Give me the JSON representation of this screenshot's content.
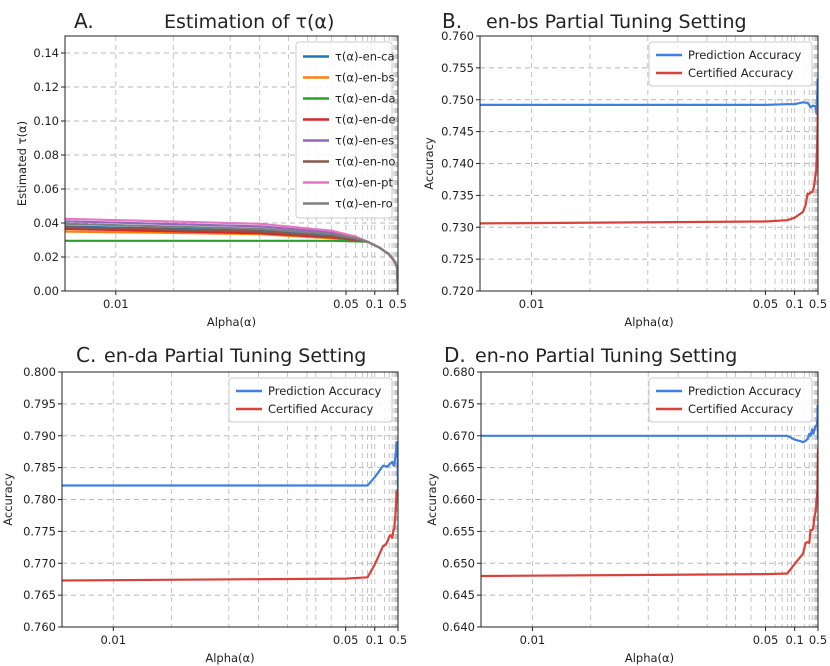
{
  "chart_data": [
    {
      "type": "line",
      "panel_letter": "A.",
      "title": "Estimation of τ(α)",
      "xlabel": "Alpha(α)",
      "ylabel": "Estimated τ(α)",
      "xscale": "reciprocal",
      "xlim": [
        0.0085,
        0.52
      ],
      "ylim": [
        0,
        0.15
      ],
      "xticks": [
        0.01,
        0.05,
        0.1,
        0.5
      ],
      "xtick_labels": [
        "0.01",
        "0.05",
        "0.1",
        "0.5"
      ],
      "yticks": [
        0,
        0.02,
        0.04,
        0.06,
        0.08,
        0.1,
        0.12,
        0.14
      ],
      "ytick_labels": [
        "0.00",
        "0.02",
        "0.04",
        "0.06",
        "0.08",
        "0.10",
        "0.12",
        "0.14"
      ],
      "grid": true,
      "legend_position": "top-right",
      "series": [
        {
          "name": "τ(α)-en-ca",
          "color": "#1f77b4",
          "x": [
            0.0085,
            0.02,
            0.04,
            0.06,
            0.08,
            0.12,
            0.2,
            0.3,
            0.4,
            0.46,
            0.5
          ],
          "y": [
            0.038,
            0.0355,
            0.0325,
            0.0305,
            0.029,
            0.0255,
            0.0215,
            0.018,
            0.0152,
            0.0128,
            0.0
          ]
        },
        {
          "name": "τ(α)-en-bs",
          "color": "#ff7f0e",
          "x": [
            0.0085,
            0.02,
            0.04,
            0.06,
            0.08,
            0.12,
            0.2,
            0.3,
            0.4,
            0.46,
            0.5
          ],
          "y": [
            0.035,
            0.0335,
            0.031,
            0.0298,
            0.029,
            0.0255,
            0.0215,
            0.018,
            0.0152,
            0.0128,
            0.0
          ]
        },
        {
          "name": "τ(α)-en-da",
          "color": "#2ca02c",
          "x": [
            0.0085,
            0.02,
            0.04,
            0.06,
            0.08,
            0.12,
            0.2,
            0.3,
            0.4,
            0.46,
            0.5
          ],
          "y": [
            0.0295,
            0.0295,
            0.0295,
            0.0292,
            0.029,
            0.0255,
            0.0215,
            0.018,
            0.0152,
            0.0128,
            0.0
          ]
        },
        {
          "name": "τ(α)-en-de",
          "color": "#d62728",
          "x": [
            0.0085,
            0.02,
            0.04,
            0.06,
            0.08,
            0.12,
            0.2,
            0.3,
            0.4,
            0.46,
            0.5
          ],
          "y": [
            0.0365,
            0.034,
            0.0315,
            0.03,
            0.029,
            0.0255,
            0.0215,
            0.018,
            0.0152,
            0.0128,
            0.0
          ]
        },
        {
          "name": "τ(α)-en-es",
          "color": "#9467bd",
          "x": [
            0.0085,
            0.02,
            0.04,
            0.06,
            0.08,
            0.12,
            0.2,
            0.3,
            0.4,
            0.46,
            0.5
          ],
          "y": [
            0.041,
            0.038,
            0.0345,
            0.0315,
            0.029,
            0.0255,
            0.0215,
            0.018,
            0.0152,
            0.0128,
            0.0
          ]
        },
        {
          "name": "τ(α)-en-no",
          "color": "#8c564b",
          "x": [
            0.0085,
            0.02,
            0.04,
            0.06,
            0.08,
            0.12,
            0.2,
            0.3,
            0.4,
            0.46,
            0.5
          ],
          "y": [
            0.0375,
            0.035,
            0.032,
            0.0302,
            0.029,
            0.0255,
            0.0215,
            0.018,
            0.0152,
            0.0128,
            0.0
          ]
        },
        {
          "name": "τ(α)-en-pt",
          "color": "#e377c2",
          "x": [
            0.0085,
            0.02,
            0.04,
            0.06,
            0.08,
            0.12,
            0.2,
            0.3,
            0.4,
            0.46,
            0.5
          ],
          "y": [
            0.0425,
            0.0395,
            0.0355,
            0.032,
            0.029,
            0.0255,
            0.0215,
            0.018,
            0.0152,
            0.0128,
            0.0
          ]
        },
        {
          "name": "τ(α)-en-ro",
          "color": "#7f7f7f",
          "x": [
            0.0085,
            0.02,
            0.04,
            0.06,
            0.08,
            0.12,
            0.2,
            0.3,
            0.4,
            0.46,
            0.5
          ],
          "y": [
            0.0395,
            0.0365,
            0.0335,
            0.031,
            0.029,
            0.0255,
            0.0215,
            0.018,
            0.0152,
            0.0128,
            0.0
          ]
        }
      ]
    },
    {
      "type": "line",
      "panel_letter": "B.",
      "title": "en-bs Partial Tuning Setting",
      "xlabel": "Alpha(α)",
      "ylabel": "Accuracy",
      "xscale": "reciprocal",
      "xlim": [
        0.0085,
        0.5
      ],
      "ylim": [
        0.72,
        0.76
      ],
      "xticks": [
        0.01,
        0.05,
        0.1,
        0.5
      ],
      "xtick_labels": [
        "0.01",
        "0.05",
        "0.1",
        "0.5"
      ],
      "yticks": [
        0.72,
        0.725,
        0.73,
        0.735,
        0.74,
        0.745,
        0.75,
        0.755,
        0.76
      ],
      "ytick_labels": [
        "0.720",
        "0.725",
        "0.730",
        "0.735",
        "0.740",
        "0.745",
        "0.750",
        "0.755",
        "0.760"
      ],
      "grid": true,
      "legend_position": "top-right",
      "series": [
        {
          "name": "Prediction Accuracy",
          "color": "#3f7fe0",
          "x": [
            0.0085,
            0.05,
            0.08,
            0.1,
            0.14,
            0.18,
            0.2,
            0.22,
            0.25,
            0.28,
            0.3,
            0.35,
            0.38,
            0.4,
            0.42,
            0.45,
            0.47,
            0.5
          ],
          "y": [
            0.7492,
            0.7492,
            0.7493,
            0.7493,
            0.7496,
            0.7495,
            0.7492,
            0.7488,
            0.749,
            0.7491,
            0.749,
            0.749,
            0.7484,
            0.7478,
            0.7496,
            0.7515,
            0.7533,
            0.7495
          ]
        },
        {
          "name": "Certified Accuracy",
          "color": "#d9423b",
          "x": [
            0.0085,
            0.05,
            0.08,
            0.1,
            0.14,
            0.16,
            0.18,
            0.2,
            0.22,
            0.25,
            0.28,
            0.3,
            0.35,
            0.38,
            0.4,
            0.42,
            0.45,
            0.47,
            0.5
          ],
          "y": [
            0.7306,
            0.7309,
            0.7311,
            0.7315,
            0.7324,
            0.7335,
            0.7353,
            0.7352,
            0.7355,
            0.7355,
            0.736,
            0.7365,
            0.7382,
            0.7388,
            0.74,
            0.7415,
            0.7445,
            0.7465,
            0.749
          ]
        }
      ]
    },
    {
      "type": "line",
      "panel_letter": "C.",
      "title": "en-da Partial Tuning Setting",
      "xlabel": "Alpha(α)",
      "ylabel": "Accuracy",
      "xscale": "reciprocal",
      "xlim": [
        0.0085,
        0.5
      ],
      "ylim": [
        0.76,
        0.8
      ],
      "xticks": [
        0.01,
        0.05,
        0.1,
        0.5
      ],
      "xtick_labels": [
        "0.01",
        "0.05",
        "0.1",
        "0.5"
      ],
      "yticks": [
        0.76,
        0.765,
        0.77,
        0.775,
        0.78,
        0.785,
        0.79,
        0.795,
        0.8
      ],
      "ytick_labels": [
        "0.760",
        "0.765",
        "0.770",
        "0.775",
        "0.780",
        "0.785",
        "0.790",
        "0.795",
        "0.800"
      ],
      "grid": true,
      "legend_position": "top-right",
      "series": [
        {
          "name": "Prediction Accuracy",
          "color": "#3f7fe0",
          "x": [
            0.0085,
            0.05,
            0.08,
            0.1,
            0.14,
            0.16,
            0.18,
            0.2,
            0.25,
            0.28,
            0.3,
            0.35,
            0.38,
            0.4,
            0.42,
            0.45,
            0.47,
            0.5
          ],
          "y": [
            0.7822,
            0.7822,
            0.7822,
            0.7835,
            0.7853,
            0.7852,
            0.7852,
            0.7855,
            0.7859,
            0.7855,
            0.7853,
            0.7868,
            0.7878,
            0.789,
            0.788,
            0.7879,
            0.7878,
            0.7817
          ]
        },
        {
          "name": "Certified Accuracy",
          "color": "#d9423b",
          "x": [
            0.0085,
            0.05,
            0.08,
            0.1,
            0.14,
            0.16,
            0.18,
            0.2,
            0.22,
            0.25,
            0.28,
            0.3,
            0.35,
            0.38,
            0.4,
            0.42,
            0.45,
            0.47,
            0.5
          ],
          "y": [
            0.7673,
            0.7676,
            0.7678,
            0.7698,
            0.7727,
            0.7729,
            0.7735,
            0.7742,
            0.7744,
            0.774,
            0.7752,
            0.7753,
            0.7777,
            0.7795,
            0.7812,
            0.7805,
            0.7812,
            0.7815,
            0.7816
          ]
        }
      ]
    },
    {
      "type": "line",
      "panel_letter": "D.",
      "title": "en-no Partial Tuning Setting",
      "xlabel": "Alpha(α)",
      "ylabel": "Accuracy",
      "xscale": "reciprocal",
      "xlim": [
        0.0085,
        0.5
      ],
      "ylim": [
        0.64,
        0.68
      ],
      "xticks": [
        0.01,
        0.05,
        0.1,
        0.5
      ],
      "xtick_labels": [
        "0.01",
        "0.05",
        "0.1",
        "0.5"
      ],
      "yticks": [
        0.64,
        0.645,
        0.65,
        0.655,
        0.66,
        0.665,
        0.67,
        0.675,
        0.68
      ],
      "ytick_labels": [
        "0.640",
        "0.645",
        "0.650",
        "0.655",
        "0.660",
        "0.665",
        "0.670",
        "0.675",
        "0.680"
      ],
      "grid": true,
      "legend_position": "top-right",
      "series": [
        {
          "name": "Prediction Accuracy",
          "color": "#3f7fe0",
          "x": [
            0.0085,
            0.05,
            0.08,
            0.1,
            0.12,
            0.14,
            0.16,
            0.18,
            0.2,
            0.22,
            0.25,
            0.28,
            0.3,
            0.35,
            0.38,
            0.4,
            0.42,
            0.45,
            0.47,
            0.5
          ],
          "y": [
            0.67,
            0.67,
            0.67,
            0.6694,
            0.6692,
            0.669,
            0.6692,
            0.6695,
            0.6703,
            0.67,
            0.671,
            0.6703,
            0.6708,
            0.6715,
            0.6716,
            0.6716,
            0.6718,
            0.6725,
            0.6747,
            0.6695
          ]
        },
        {
          "name": "Certified Accuracy",
          "color": "#d9423b",
          "x": [
            0.0085,
            0.05,
            0.08,
            0.1,
            0.14,
            0.16,
            0.18,
            0.2,
            0.22,
            0.25,
            0.28,
            0.3,
            0.32,
            0.35,
            0.38,
            0.4,
            0.42,
            0.45,
            0.47,
            0.5
          ],
          "y": [
            0.648,
            0.6483,
            0.6484,
            0.6499,
            0.6515,
            0.6532,
            0.6533,
            0.6532,
            0.6552,
            0.6552,
            0.6556,
            0.657,
            0.6575,
            0.658,
            0.659,
            0.6598,
            0.6605,
            0.6615,
            0.6645,
            0.668
          ]
        }
      ]
    }
  ]
}
